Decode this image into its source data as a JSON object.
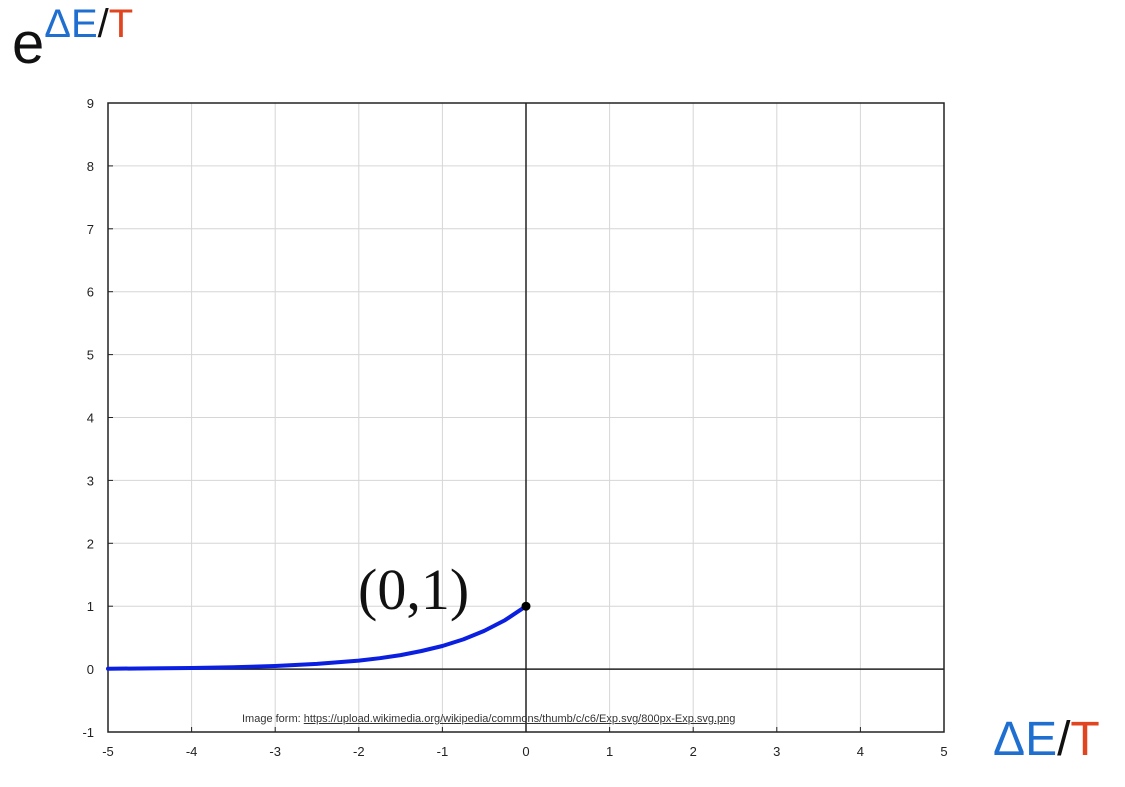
{
  "axis_labels": {
    "y": {
      "base": "e",
      "delta_e": "ΔE",
      "slash": "/",
      "t": "T"
    },
    "x": {
      "delta_e": "ΔE",
      "slash": "/",
      "t": "T"
    }
  },
  "caption": {
    "prefix": "Image form:",
    "url": "https://upload.wikimedia.org/wikipedia/commons/thumb/c/c6/Exp.svg/800px-Exp.svg.png"
  },
  "annotation": "(0,1)",
  "colors": {
    "curve": "#0a1fe0",
    "grid": "#d6d6d6",
    "axis": "#222222",
    "blue_text": "#1f6fd1",
    "red_text": "#e0451f"
  },
  "chart_data": {
    "type": "line",
    "xlim": [
      -5,
      5
    ],
    "ylim": [
      -1,
      9
    ],
    "x_ticks": [
      "-5",
      "-4",
      "-3",
      "-2",
      "-1",
      "0",
      "1",
      "2",
      "3",
      "4",
      "5"
    ],
    "y_ticks": [
      "-1",
      "0",
      "1",
      "2",
      "3",
      "4",
      "5",
      "6",
      "7",
      "8",
      "9"
    ],
    "grid": true,
    "series": [
      {
        "function": "exp(x)",
        "x": [
          -5,
          -4.5,
          -4,
          -3.5,
          -3,
          -2.5,
          -2,
          -1.75,
          -1.5,
          -1.25,
          -1,
          -0.75,
          -0.5,
          -0.25,
          0
        ],
        "y": [
          0.007,
          0.011,
          0.018,
          0.03,
          0.05,
          0.082,
          0.135,
          0.174,
          0.223,
          0.287,
          0.368,
          0.472,
          0.607,
          0.779,
          1.0
        ]
      }
    ],
    "points": [
      {
        "x": 0,
        "y": 1,
        "label": "(0,1)"
      }
    ]
  }
}
